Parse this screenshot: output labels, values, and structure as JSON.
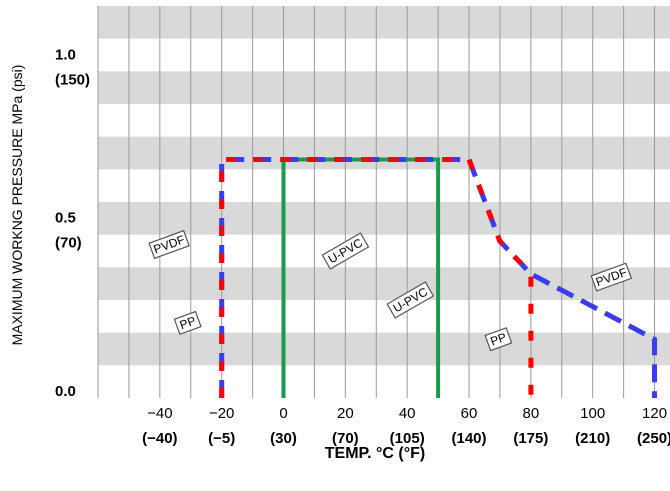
{
  "chart_data": {
    "type": "line",
    "xlabel": "TEMP. °C (°F)",
    "ylabel": "MAXIMUM WORKNG PRESSURE  MPa (psi)",
    "xlim": [
      -60,
      125
    ],
    "ylim": [
      0,
      1.2
    ],
    "x_ticks": [
      {
        "value": -40,
        "label": "−40",
        "sub": "(−40)"
      },
      {
        "value": -20,
        "label": "−20",
        "sub": "(−5)"
      },
      {
        "value": 0,
        "label": "0",
        "sub": "(30)"
      },
      {
        "value": 20,
        "label": "20",
        "sub": "(70)"
      },
      {
        "value": 40,
        "label": "40",
        "sub": "(105)"
      },
      {
        "value": 60,
        "label": "60",
        "sub": "(140)"
      },
      {
        "value": 80,
        "label": "80",
        "sub": "(175)"
      },
      {
        "value": 100,
        "label": "100",
        "sub": "(210)"
      },
      {
        "value": 120,
        "label": "120",
        "sub": "(250)"
      }
    ],
    "y_ticks": [
      {
        "value": 0.0,
        "label": "0.0",
        "sub": ""
      },
      {
        "value": 0.5,
        "label": "0.5",
        "sub": "(70)"
      },
      {
        "value": 1.0,
        "label": "1.0",
        "sub": "(150)"
      }
    ],
    "grid": true,
    "series": [
      {
        "name": "PVDF",
        "color": "#3b3bf0",
        "style": "dashed",
        "x": [
          -20,
          -20,
          60,
          70,
          80,
          120,
          120
        ],
        "y": [
          0,
          0.73,
          0.73,
          0.48,
          0.38,
          0.18,
          0
        ]
      },
      {
        "name": "PP",
        "color": "#ff0000",
        "style": "dashed-offset",
        "x": [
          -20,
          -20,
          60,
          70,
          80,
          80
        ],
        "y": [
          0,
          0.73,
          0.73,
          0.48,
          0.38,
          0
        ]
      },
      {
        "name": "U-PVC",
        "color": "#1a9a4a",
        "style": "solid",
        "x": [
          0,
          0,
          50,
          50
        ],
        "y": [
          0,
          0.73,
          0.73,
          0
        ]
      }
    ],
    "annotations": [
      {
        "text": "PVDF",
        "x": -37,
        "y": 0.47,
        "angle": -20
      },
      {
        "text": "PP",
        "x": -31,
        "y": 0.23,
        "angle": -20
      },
      {
        "text": "U-PVC",
        "x": 20,
        "y": 0.45,
        "angle": -30
      },
      {
        "text": "U-PVC",
        "x": 41,
        "y": 0.3,
        "angle": -30
      },
      {
        "text": "PP",
        "x": 69.5,
        "y": 0.18,
        "angle": -20
      },
      {
        "text": "PVDF",
        "x": 106,
        "y": 0.37,
        "angle": -20
      }
    ]
  }
}
